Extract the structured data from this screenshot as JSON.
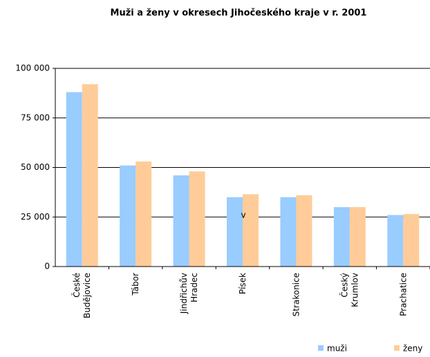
{
  "chart_data": {
    "type": "bar",
    "title": "Muži a ženy v okresech Jihočeského kraje v r. 2001",
    "categories": [
      "České Budějovice",
      "Tábor",
      "Jindřichův Hradec",
      "Písek",
      "Strakonice",
      "Český Krumlov",
      "Prachatice"
    ],
    "series": [
      {
        "name": "muži",
        "color": "#99ccff",
        "values": [
          88000,
          51000,
          46000,
          35000,
          35000,
          30000,
          26000
        ]
      },
      {
        "name": "ženy",
        "color": "#ffcc99",
        "values": [
          92000,
          53000,
          48000,
          36500,
          36000,
          30000,
          26500
        ]
      }
    ],
    "annotation": "v",
    "ylim": [
      0,
      100000
    ],
    "yticks": [
      0,
      {
        "value": 25000,
        "label": "25 000"
      },
      {
        "value": 50000,
        "label": "50 000"
      },
      {
        "value": 75000,
        "label": "75 000"
      },
      {
        "value": 100000,
        "label": "100 000"
      }
    ],
    "grid": true,
    "legend": "bottom-right"
  }
}
